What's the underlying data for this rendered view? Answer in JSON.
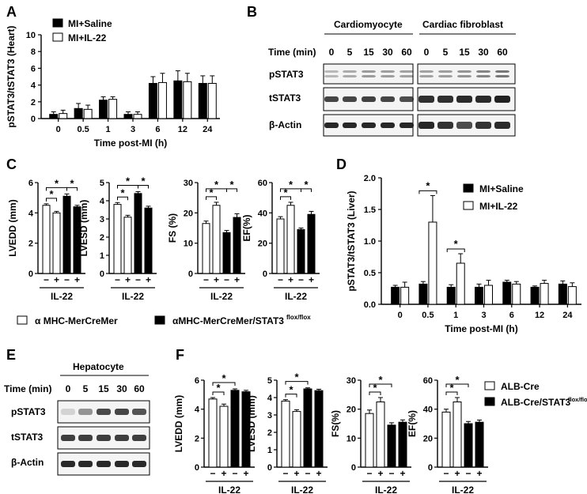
{
  "panels": {
    "A": {
      "letter": "A"
    },
    "B": {
      "letter": "B",
      "headers": [
        "Cardiomyocyte",
        "Cardiac fibroblast"
      ],
      "time_label": "Time (min)",
      "times": [
        "0",
        "5",
        "15",
        "30",
        "60"
      ],
      "rows": [
        "pSTAT3",
        "tSTAT3",
        "β-Actin"
      ]
    },
    "C": {
      "letter": "C"
    },
    "D": {
      "letter": "D"
    },
    "E": {
      "letter": "E",
      "header": "Hepatocyte",
      "time_label": "Time (min)",
      "times": [
        "0",
        "5",
        "15",
        "30",
        "60"
      ],
      "rows": [
        "pSTAT3",
        "tSTAT3",
        "β-Actin"
      ]
    },
    "F": {
      "letter": "F"
    }
  },
  "legends": {
    "C": {
      "item1": "α MHC-MerCreMer",
      "item2": "αMHC-MerCreMer/STAT3",
      "item2_sup": "flox/flox"
    },
    "F": {
      "item1": "ALB-Cre",
      "item2": "ALB-Cre/STAT3",
      "item2_sup": "flox/flox"
    }
  },
  "colors": {
    "filled": "#000000",
    "open": "#ffffff",
    "blot_bg": "#f4f4f4",
    "band": "#1e1e1e"
  },
  "chart_data": [
    {
      "id": "A",
      "type": "bar",
      "ylabel": "pSTAT3/tSTAT3 (Heart)",
      "xlabel": "Time post-MI (h)",
      "ylim": [
        0,
        10
      ],
      "yticks": [
        0,
        2,
        4,
        6,
        8,
        10
      ],
      "categories": [
        "0",
        "0.5",
        "1",
        "3",
        "6",
        "12",
        "24"
      ],
      "series": [
        {
          "name": "MI+Saline",
          "fill": "black",
          "values": [
            0.5,
            1.2,
            2.2,
            0.5,
            4.2,
            4.5,
            4.2
          ],
          "errors": [
            0.3,
            0.6,
            0.4,
            0.3,
            0.8,
            1.2,
            0.9
          ]
        },
        {
          "name": "MI+IL-22",
          "fill": "white",
          "values": [
            0.6,
            1.1,
            2.3,
            0.5,
            4.3,
            4.4,
            4.2
          ],
          "errors": [
            0.4,
            0.5,
            0.3,
            0.3,
            1.1,
            1.0,
            0.9
          ]
        }
      ]
    },
    {
      "id": "C1",
      "type": "bar",
      "ylabel": "LVEDD (mm)",
      "xlabel": "IL-22",
      "ylim": [
        0,
        6
      ],
      "yticks": [
        0,
        2,
        4,
        6
      ],
      "signs": [
        "−",
        "+",
        "−",
        "+"
      ],
      "values": [
        4.5,
        4.0,
        5.1,
        4.4
      ],
      "errors": [
        0.1,
        0.1,
        0.15,
        0.1
      ],
      "fills": [
        "white",
        "white",
        "black",
        "black"
      ],
      "sig": [
        {
          "from": 0,
          "to": 1,
          "level": 0,
          "label": "*"
        },
        {
          "from": 0,
          "to": 2,
          "level": 1,
          "label": "*"
        },
        {
          "from": 2,
          "to": 3,
          "level": 1,
          "label": "*"
        }
      ]
    },
    {
      "id": "C2",
      "type": "bar",
      "ylabel": "LVESD (mm)",
      "xlabel": "IL-22",
      "ylim": [
        0,
        5
      ],
      "yticks": [
        0,
        1,
        2,
        3,
        4,
        5
      ],
      "signs": [
        "−",
        "+",
        "−",
        "+"
      ],
      "values": [
        3.8,
        3.1,
        4.4,
        3.6
      ],
      "errors": [
        0.1,
        0.1,
        0.1,
        0.1
      ],
      "fills": [
        "white",
        "white",
        "black",
        "black"
      ],
      "sig": [
        {
          "from": 0,
          "to": 1,
          "level": 0,
          "label": "*"
        },
        {
          "from": 0,
          "to": 2,
          "level": 1,
          "label": "*"
        },
        {
          "from": 2,
          "to": 3,
          "level": 1,
          "label": "*"
        }
      ]
    },
    {
      "id": "C3",
      "type": "bar",
      "ylabel": "FS (%)",
      "xlabel": "IL-22",
      "ylim": [
        0,
        30
      ],
      "yticks": [
        0,
        10,
        20,
        30
      ],
      "signs": [
        "−",
        "+",
        "−",
        "+"
      ],
      "values": [
        16.5,
        22.5,
        13.5,
        18.5
      ],
      "errors": [
        0.8,
        1.0,
        0.7,
        1.2
      ],
      "fills": [
        "white",
        "white",
        "black",
        "black"
      ],
      "sig": [
        {
          "from": 0,
          "to": 1,
          "level": 0,
          "label": "*"
        },
        {
          "from": 0,
          "to": 2,
          "level": 1,
          "label": "*"
        },
        {
          "from": 2,
          "to": 3,
          "level": 1,
          "label": "*"
        }
      ]
    },
    {
      "id": "C4",
      "type": "bar",
      "ylabel": "EF(%)",
      "xlabel": "IL-22",
      "ylim": [
        0,
        60
      ],
      "yticks": [
        0,
        20,
        40,
        60
      ],
      "signs": [
        "−",
        "+",
        "−",
        "+"
      ],
      "values": [
        36,
        45,
        29,
        39
      ],
      "errors": [
        1.5,
        2,
        1,
        2
      ],
      "fills": [
        "white",
        "white",
        "black",
        "black"
      ],
      "sig": [
        {
          "from": 0,
          "to": 1,
          "level": 0,
          "label": "*"
        },
        {
          "from": 0,
          "to": 2,
          "level": 1,
          "label": "*"
        },
        {
          "from": 2,
          "to": 3,
          "level": 1,
          "label": "*"
        }
      ]
    },
    {
      "id": "D",
      "type": "bar",
      "ylabel": "pSTAT3/tSTAT3 (Liver)",
      "xlabel": "Time post-MI (h)",
      "ylim": [
        0,
        2.0
      ],
      "yticks": [
        0.0,
        0.5,
        1.0,
        1.5,
        2.0
      ],
      "categories": [
        "0",
        "0.5",
        "1",
        "3",
        "6",
        "12",
        "24"
      ],
      "series": [
        {
          "name": "MI+Saline",
          "fill": "black",
          "values": [
            0.27,
            0.32,
            0.27,
            0.27,
            0.35,
            0.27,
            0.32
          ],
          "errors": [
            0.03,
            0.04,
            0.04,
            0.05,
            0.03,
            0.02,
            0.05
          ]
        },
        {
          "name": "MI+IL-22",
          "fill": "white",
          "values": [
            0.27,
            1.3,
            0.65,
            0.3,
            0.32,
            0.33,
            0.28
          ],
          "errors": [
            0.08,
            0.42,
            0.15,
            0.08,
            0.04,
            0.05,
            0.06
          ]
        }
      ],
      "sig": [
        {
          "index": 1,
          "label": "*"
        },
        {
          "index": 2,
          "label": "*"
        }
      ]
    },
    {
      "id": "F1",
      "type": "bar",
      "ylabel": "LVEDD (mm)",
      "xlabel": "IL-22",
      "ylim": [
        0,
        6
      ],
      "yticks": [
        0,
        2,
        4,
        6
      ],
      "signs": [
        "−",
        "+",
        "−",
        "+"
      ],
      "values": [
        4.7,
        4.2,
        5.3,
        5.2
      ],
      "errors": [
        0.1,
        0.15,
        0.1,
        0.1
      ],
      "fills": [
        "white",
        "white",
        "black",
        "black"
      ],
      "sig": [
        {
          "from": 0,
          "to": 1,
          "level": 0,
          "label": "*"
        },
        {
          "from": 0,
          "to": 2,
          "level": 1,
          "label": "*"
        }
      ]
    },
    {
      "id": "F2",
      "type": "bar",
      "ylabel": "LVESD (mm)",
      "xlabel": "IL-22",
      "ylim": [
        0,
        5
      ],
      "yticks": [
        0,
        1,
        2,
        3,
        4,
        5
      ],
      "signs": [
        "−",
        "+",
        "−",
        "+"
      ],
      "values": [
        3.8,
        3.2,
        4.5,
        4.4
      ],
      "errors": [
        0.08,
        0.1,
        0.06,
        0.08
      ],
      "fills": [
        "white",
        "white",
        "black",
        "black"
      ],
      "sig": [
        {
          "from": 0,
          "to": 1,
          "level": 0,
          "label": "*"
        },
        {
          "from": 0,
          "to": 2,
          "level": 1,
          "label": "*"
        }
      ]
    },
    {
      "id": "F3",
      "type": "bar",
      "ylabel": "FS(%)",
      "xlabel": "IL-22",
      "ylim": [
        0,
        30
      ],
      "yticks": [
        0,
        10,
        20,
        30
      ],
      "signs": [
        "−",
        "+",
        "−",
        "+"
      ],
      "values": [
        18.5,
        22.5,
        14.5,
        15.5
      ],
      "errors": [
        1.2,
        1.5,
        0.8,
        0.8
      ],
      "fills": [
        "white",
        "white",
        "black",
        "black"
      ],
      "sig": [
        {
          "from": 0,
          "to": 1,
          "level": 0,
          "label": "*"
        },
        {
          "from": 0,
          "to": 2,
          "level": 1,
          "label": "*"
        }
      ]
    },
    {
      "id": "F4",
      "type": "bar",
      "ylabel": "EF(%)",
      "xlabel": "IL-22",
      "ylim": [
        0,
        60
      ],
      "yticks": [
        0,
        20,
        40,
        60
      ],
      "signs": [
        "−",
        "+",
        "−",
        "+"
      ],
      "values": [
        38,
        45,
        30,
        31
      ],
      "errors": [
        2,
        3,
        1.5,
        1.5
      ],
      "fills": [
        "white",
        "white",
        "black",
        "black"
      ],
      "sig": [
        {
          "from": 0,
          "to": 1,
          "level": 0,
          "label": "*"
        },
        {
          "from": 0,
          "to": 2,
          "level": 1,
          "label": "*"
        }
      ]
    }
  ]
}
